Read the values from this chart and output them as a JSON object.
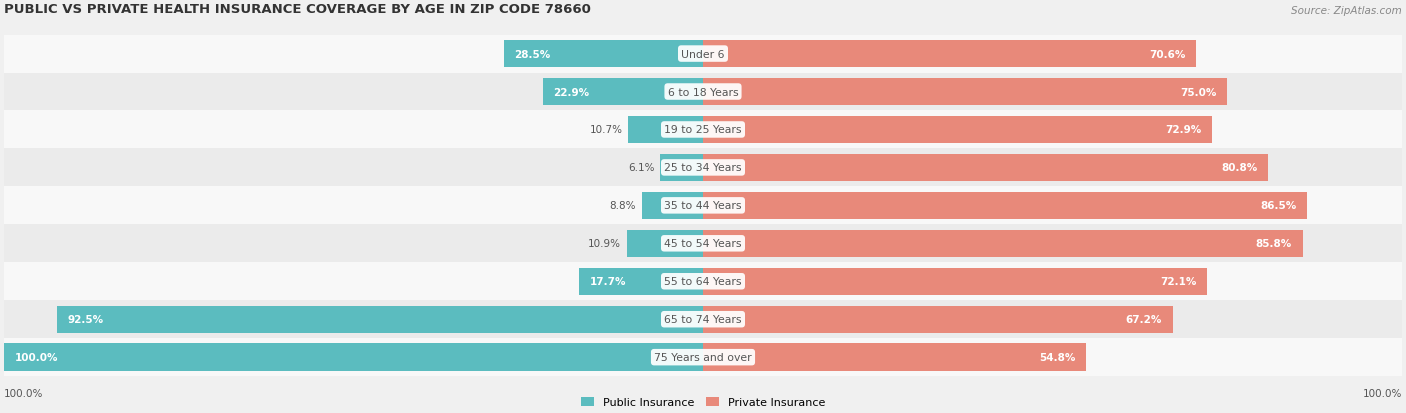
{
  "title": "PUBLIC VS PRIVATE HEALTH INSURANCE COVERAGE BY AGE IN ZIP CODE 78660",
  "source": "Source: ZipAtlas.com",
  "categories": [
    "Under 6",
    "6 to 18 Years",
    "19 to 25 Years",
    "25 to 34 Years",
    "35 to 44 Years",
    "45 to 54 Years",
    "55 to 64 Years",
    "65 to 74 Years",
    "75 Years and over"
  ],
  "public_values": [
    28.5,
    22.9,
    10.7,
    6.1,
    8.8,
    10.9,
    17.7,
    92.5,
    100.0
  ],
  "private_values": [
    70.6,
    75.0,
    72.9,
    80.8,
    86.5,
    85.8,
    72.1,
    67.2,
    54.8
  ],
  "public_color": "#5bbcbf",
  "private_color": "#e8897a",
  "bg_color": "#f0f0f0",
  "row_bg_even": "#f8f8f8",
  "row_bg_odd": "#ebebeb",
  "title_color": "#333333",
  "label_color": "#555555",
  "category_text_color": "#555555",
  "legend_public": "Public Insurance",
  "legend_private": "Private Insurance",
  "x_axis_left": "100.0%",
  "x_axis_right": "100.0%",
  "max_val": 100.0
}
